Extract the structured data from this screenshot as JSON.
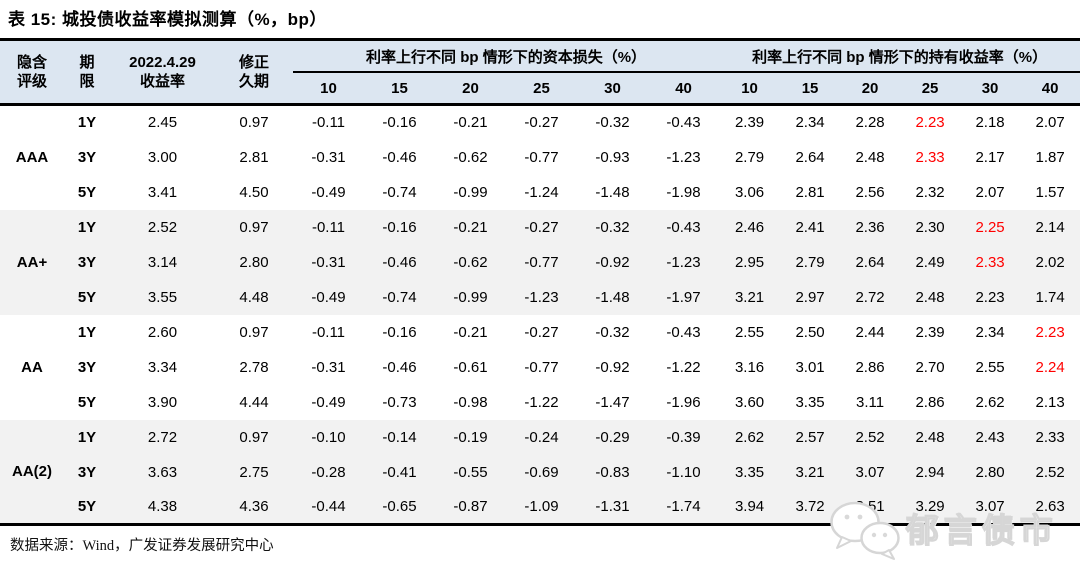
{
  "title": "表 15:  城投债收益率模拟测算（%，bp）",
  "colors": {
    "header_bg": "#dce6f1",
    "shaded_row_bg": "#f2f2f2",
    "highlight_red": "#ff0000",
    "border": "#000000"
  },
  "table": {
    "headers": {
      "rating": "隐含\n评级",
      "term": "期\n限",
      "yield_date": "2022.4.29\n收益率",
      "duration": "修正\n久期",
      "capital_loss_group": "利率上行不同 bp 情形下的资本损失（%）",
      "holding_group": "利率上行不同 bp 情形下的持有收益率（%）",
      "bp_columns": [
        "10",
        "15",
        "20",
        "25",
        "30",
        "40"
      ]
    },
    "groups": [
      {
        "rating": "AAA",
        "shaded": false,
        "rows": [
          {
            "term": "1Y",
            "yield": "2.45",
            "duration": "0.97",
            "capital_loss": [
              "-0.11",
              "-0.16",
              "-0.21",
              "-0.27",
              "-0.32",
              "-0.43"
            ],
            "holding": [
              "2.39",
              "2.34",
              "2.28",
              "2.23",
              "2.18",
              "2.07"
            ],
            "red_index": 3
          },
          {
            "term": "3Y",
            "yield": "3.00",
            "duration": "2.81",
            "capital_loss": [
              "-0.31",
              "-0.46",
              "-0.62",
              "-0.77",
              "-0.93",
              "-1.23"
            ],
            "holding": [
              "2.79",
              "2.64",
              "2.48",
              "2.33",
              "2.17",
              "1.87"
            ],
            "red_index": 3
          },
          {
            "term": "5Y",
            "yield": "3.41",
            "duration": "4.50",
            "capital_loss": [
              "-0.49",
              "-0.74",
              "-0.99",
              "-1.24",
              "-1.48",
              "-1.98"
            ],
            "holding": [
              "3.06",
              "2.81",
              "2.56",
              "2.32",
              "2.07",
              "1.57"
            ],
            "red_index": null
          }
        ]
      },
      {
        "rating": "AA+",
        "shaded": true,
        "rows": [
          {
            "term": "1Y",
            "yield": "2.52",
            "duration": "0.97",
            "capital_loss": [
              "-0.11",
              "-0.16",
              "-0.21",
              "-0.27",
              "-0.32",
              "-0.43"
            ],
            "holding": [
              "2.46",
              "2.41",
              "2.36",
              "2.30",
              "2.25",
              "2.14"
            ],
            "red_index": 4
          },
          {
            "term": "3Y",
            "yield": "3.14",
            "duration": "2.80",
            "capital_loss": [
              "-0.31",
              "-0.46",
              "-0.62",
              "-0.77",
              "-0.92",
              "-1.23"
            ],
            "holding": [
              "2.95",
              "2.79",
              "2.64",
              "2.49",
              "2.33",
              "2.02"
            ],
            "red_index": 4
          },
          {
            "term": "5Y",
            "yield": "3.55",
            "duration": "4.48",
            "capital_loss": [
              "-0.49",
              "-0.74",
              "-0.99",
              "-1.23",
              "-1.48",
              "-1.97"
            ],
            "holding": [
              "3.21",
              "2.97",
              "2.72",
              "2.48",
              "2.23",
              "1.74"
            ],
            "red_index": null
          }
        ]
      },
      {
        "rating": "AA",
        "shaded": false,
        "rows": [
          {
            "term": "1Y",
            "yield": "2.60",
            "duration": "0.97",
            "capital_loss": [
              "-0.11",
              "-0.16",
              "-0.21",
              "-0.27",
              "-0.32",
              "-0.43"
            ],
            "holding": [
              "2.55",
              "2.50",
              "2.44",
              "2.39",
              "2.34",
              "2.23"
            ],
            "red_index": 5
          },
          {
            "term": "3Y",
            "yield": "3.34",
            "duration": "2.78",
            "capital_loss": [
              "-0.31",
              "-0.46",
              "-0.61",
              "-0.77",
              "-0.92",
              "-1.22"
            ],
            "holding": [
              "3.16",
              "3.01",
              "2.86",
              "2.70",
              "2.55",
              "2.24"
            ],
            "red_index": 5
          },
          {
            "term": "5Y",
            "yield": "3.90",
            "duration": "4.44",
            "capital_loss": [
              "-0.49",
              "-0.73",
              "-0.98",
              "-1.22",
              "-1.47",
              "-1.96"
            ],
            "holding": [
              "3.60",
              "3.35",
              "3.11",
              "2.86",
              "2.62",
              "2.13"
            ],
            "red_index": null
          }
        ]
      },
      {
        "rating": "AA(2)",
        "shaded": true,
        "rows": [
          {
            "term": "1Y",
            "yield": "2.72",
            "duration": "0.97",
            "capital_loss": [
              "-0.10",
              "-0.14",
              "-0.19",
              "-0.24",
              "-0.29",
              "-0.39"
            ],
            "holding": [
              "2.62",
              "2.57",
              "2.52",
              "2.48",
              "2.43",
              "2.33"
            ],
            "red_index": null
          },
          {
            "term": "3Y",
            "yield": "3.63",
            "duration": "2.75",
            "capital_loss": [
              "-0.28",
              "-0.41",
              "-0.55",
              "-0.69",
              "-0.83",
              "-1.10"
            ],
            "holding": [
              "3.35",
              "3.21",
              "3.07",
              "2.94",
              "2.80",
              "2.52"
            ],
            "red_index": null
          },
          {
            "term": "5Y",
            "yield": "4.38",
            "duration": "4.36",
            "capital_loss": [
              "-0.44",
              "-0.65",
              "-0.87",
              "-1.09",
              "-1.31",
              "-1.74"
            ],
            "holding": [
              "3.94",
              "3.72",
              "3.51",
              "3.29",
              "3.07",
              "2.63"
            ],
            "red_index": null
          }
        ]
      }
    ]
  },
  "footer": {
    "source": "数据来源：Wind，广发证券发展研究中心"
  },
  "watermark": {
    "text": "郁言债市",
    "icon": "wechat-icon"
  }
}
